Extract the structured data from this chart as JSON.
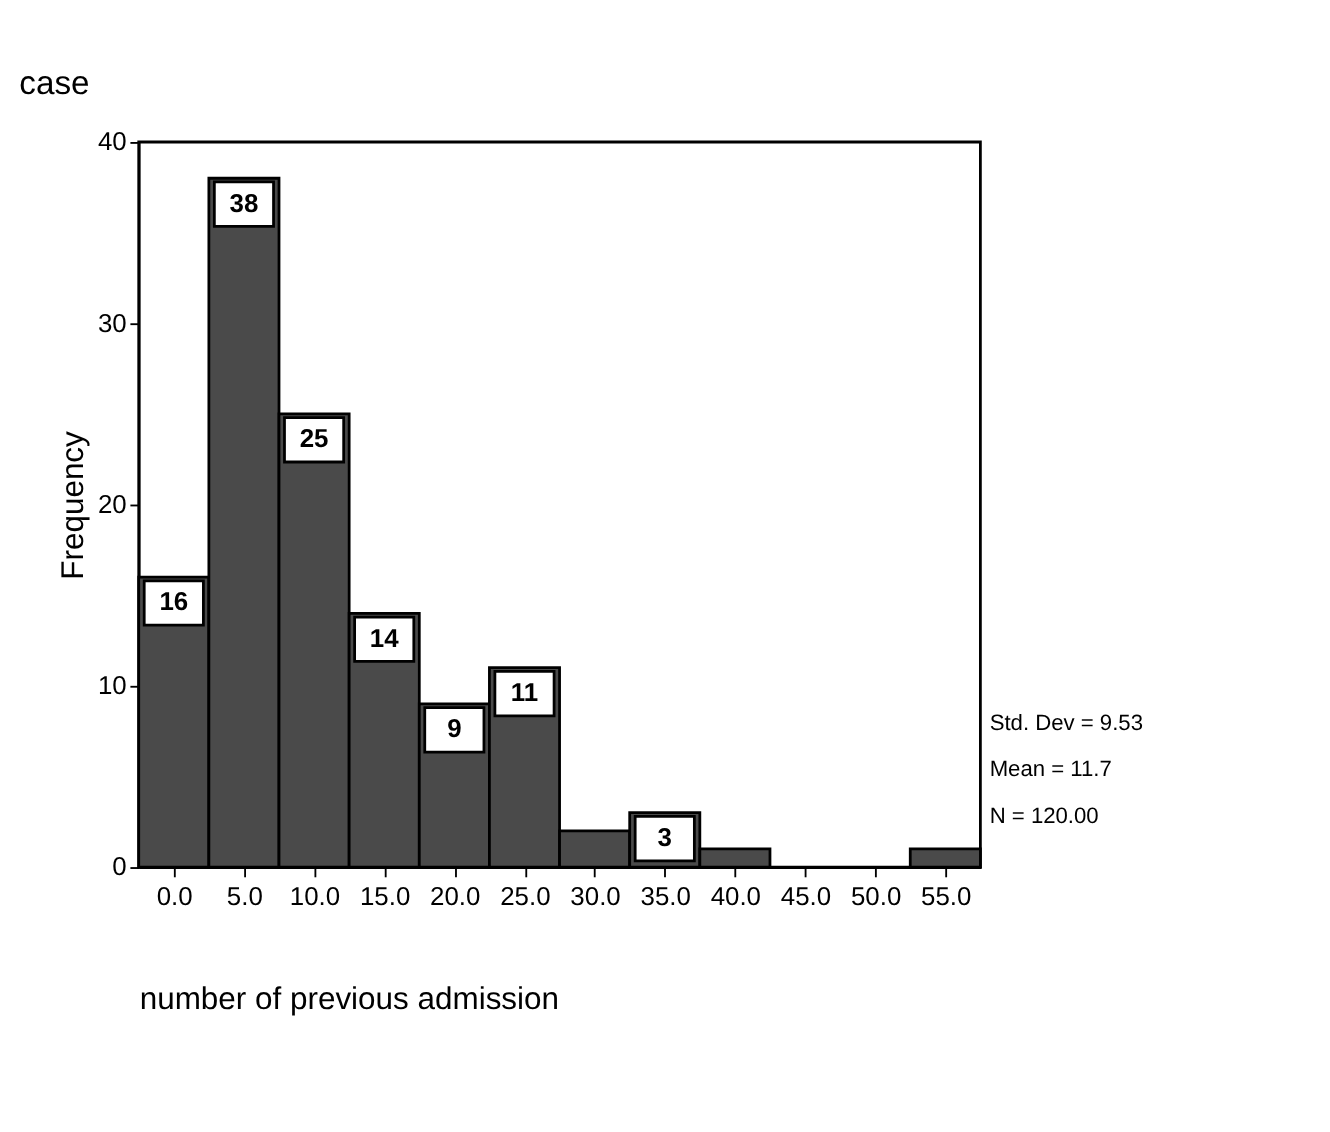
{
  "chart_data": {
    "type": "histogram",
    "title": "case",
    "xlabel": "number of previous admission",
    "ylabel": "Frequency",
    "bins": [
      -2.5,
      2.5,
      7.5,
      12.5,
      17.5,
      22.5,
      27.5,
      32.5,
      37.5,
      42.5,
      47.5,
      52.5,
      57.5
    ],
    "values": [
      16,
      38,
      25,
      14,
      9,
      11,
      2,
      3,
      1,
      0,
      0,
      1
    ],
    "value_labels": [
      "16",
      "38",
      "25",
      "14",
      "9",
      "11",
      null,
      "3",
      null,
      null,
      null,
      null
    ],
    "color": "#4a4a4a",
    "xlim": [
      -2.5,
      57.5
    ],
    "xticks": [
      {
        "value": 0,
        "label": "0.0"
      },
      {
        "value": 5,
        "label": "5.0"
      },
      {
        "value": 10,
        "label": "10.0"
      },
      {
        "value": 15,
        "label": "15.0"
      },
      {
        "value": 20,
        "label": "20.0"
      },
      {
        "value": 25,
        "label": "25.0"
      },
      {
        "value": 30,
        "label": "30.0"
      },
      {
        "value": 35,
        "label": "35.0"
      },
      {
        "value": 40,
        "label": "40.0"
      },
      {
        "value": 45,
        "label": "45.0"
      },
      {
        "value": 50,
        "label": "50.0"
      },
      {
        "value": 55,
        "label": "55.0"
      }
    ],
    "ylim": [
      0,
      40
    ],
    "yticks": [
      0,
      10,
      20,
      30,
      40
    ],
    "annotations": [
      "Std. Dev = 9.53",
      "Mean = 11.7",
      "N = 120.00"
    ]
  }
}
